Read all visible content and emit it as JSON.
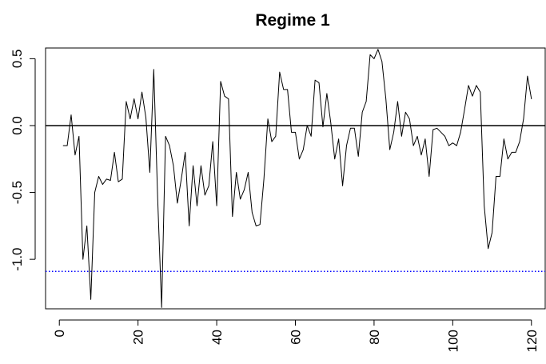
{
  "chart_data": {
    "type": "line",
    "title": "Regime 1",
    "xlabel": "",
    "ylabel": "",
    "xlim": [
      -3.5,
      123.5
    ],
    "ylim": [
      -1.37,
      0.58
    ],
    "xticks": [
      "0",
      "20",
      "40",
      "60",
      "80",
      "100",
      "120"
    ],
    "yticks": [
      "0.5",
      "0.0",
      "-0.5",
      "-1.0"
    ],
    "xtick_values": [
      0,
      20,
      40,
      60,
      80,
      100,
      120
    ],
    "ytick_values": [
      0.5,
      0.0,
      -0.5,
      -1.0
    ],
    "grid": false,
    "reference_lines": [
      {
        "y": 0.0,
        "style": "solid",
        "color": "#000000"
      },
      {
        "y": -1.09,
        "style": "dotted",
        "color": "#0000ff"
      }
    ],
    "series": [
      {
        "color": "#000000",
        "x": [
          1,
          2,
          3,
          4,
          5,
          6,
          7,
          8,
          9,
          10,
          11,
          12,
          13,
          14,
          15,
          16,
          17,
          18,
          19,
          20,
          21,
          22,
          23,
          24,
          25,
          26,
          27,
          28,
          29,
          30,
          31,
          32,
          33,
          34,
          35,
          36,
          37,
          38,
          39,
          40,
          41,
          42,
          43,
          44,
          45,
          46,
          47,
          48,
          49,
          50,
          51,
          52,
          53,
          54,
          55,
          56,
          57,
          58,
          59,
          60,
          61,
          62,
          63,
          64,
          65,
          66,
          67,
          68,
          69,
          70,
          71,
          72,
          73,
          74,
          75,
          76,
          77,
          78,
          79,
          80,
          81,
          82,
          83,
          84,
          85,
          86,
          87,
          88,
          89,
          90,
          91,
          92,
          93,
          94,
          95,
          96,
          97,
          98,
          99,
          100,
          101,
          102,
          103,
          104,
          105,
          106,
          107,
          108,
          109,
          110,
          111,
          112,
          113,
          114,
          115,
          116,
          117,
          118,
          119,
          120
        ],
        "y": [
          -0.15,
          -0.15,
          0.08,
          -0.22,
          -0.08,
          -1.0,
          -0.75,
          -1.3,
          -0.5,
          -0.38,
          -0.44,
          -0.4,
          -0.41,
          -0.2,
          -0.42,
          -0.4,
          0.18,
          0.05,
          0.2,
          0.05,
          0.25,
          0.06,
          -0.35,
          0.42,
          -0.55,
          -1.36,
          -0.08,
          -0.15,
          -0.3,
          -0.58,
          -0.4,
          -0.2,
          -0.75,
          -0.3,
          -0.6,
          -0.3,
          -0.52,
          -0.45,
          -0.12,
          -0.6,
          0.33,
          0.22,
          0.2,
          -0.68,
          -0.35,
          -0.55,
          -0.48,
          -0.35,
          -0.65,
          -0.75,
          -0.74,
          -0.4,
          0.05,
          -0.12,
          -0.08,
          0.4,
          0.27,
          0.27,
          -0.05,
          -0.05,
          -0.25,
          -0.18,
          0.0,
          -0.08,
          0.34,
          0.32,
          -0.01,
          0.24,
          0.02,
          -0.25,
          -0.1,
          -0.45,
          -0.15,
          -0.02,
          -0.02,
          -0.23,
          0.1,
          0.18,
          0.53,
          0.5,
          0.57,
          0.48,
          0.2,
          -0.18,
          -0.05,
          0.18,
          -0.08,
          0.1,
          0.05,
          -0.15,
          -0.08,
          -0.22,
          -0.1,
          -0.38,
          -0.03,
          -0.02,
          -0.05,
          -0.08,
          -0.15,
          -0.13,
          -0.15,
          -0.05,
          0.12,
          0.3,
          0.22,
          0.3,
          0.25,
          -0.6,
          -0.92,
          -0.8,
          -0.38,
          -0.38,
          -0.1,
          -0.25,
          -0.2,
          -0.2,
          -0.12,
          0.05,
          0.37,
          0.2
        ]
      }
    ]
  }
}
